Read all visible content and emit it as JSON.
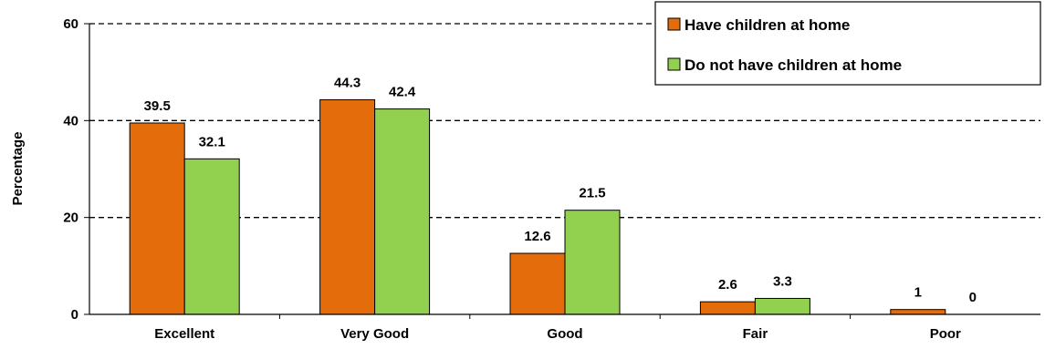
{
  "chart_data": {
    "type": "bar",
    "categories": [
      "Excellent",
      "Very Good",
      "Good",
      "Fair",
      "Poor"
    ],
    "series": [
      {
        "name": "Have children at home",
        "values": [
          39.5,
          44.3,
          12.6,
          2.6,
          1
        ],
        "color": "#E46C0A"
      },
      {
        "name": "Do not have children at home",
        "values": [
          32.1,
          42.4,
          21.5,
          3.3,
          0
        ],
        "color": "#92D050"
      }
    ],
    "title": "",
    "xlabel": "",
    "ylabel": "Percentage",
    "ylim": [
      0,
      60
    ],
    "yticks": [
      0,
      20,
      40,
      60
    ],
    "grid": true,
    "legend_position": "top-right"
  }
}
